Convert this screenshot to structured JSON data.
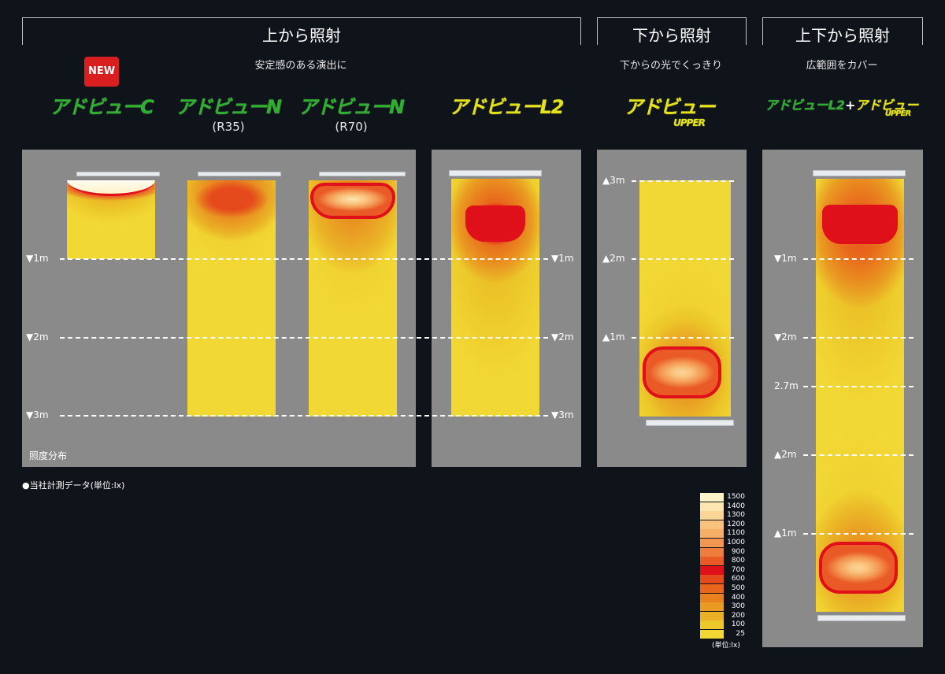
{
  "sections": [
    {
      "title": "上から照射",
      "subtitle": "安定感のある演出に"
    },
    {
      "title": "下から照射",
      "subtitle": "下からの光でくっきり"
    },
    {
      "title": "上下から照射",
      "subtitle": "広範囲をカバー"
    }
  ],
  "new_badge": "NEW",
  "products": [
    {
      "name": "アドビューC",
      "variant": ""
    },
    {
      "name": "アドビューN",
      "variant": "(R35)"
    },
    {
      "name": "アドビューN",
      "variant": "(R70)"
    },
    {
      "name": "アドビューL2",
      "variant": ""
    },
    {
      "name": "アドビュー",
      "variant": "UPPER"
    },
    {
      "name": "アドビューL2",
      "plus": "+",
      "name2": "アドビュー",
      "variant": "UPPER"
    }
  ],
  "distance_labels": {
    "down": [
      "▼1m",
      "▼2m",
      "▼3m"
    ],
    "up": [
      "▲3m",
      "▲2m",
      "▲1m"
    ],
    "combined": [
      "▼1m",
      "▼2m",
      "2.7m",
      "▲2m",
      "▲1m"
    ]
  },
  "panel_caption": "照度分布",
  "measurement_note": "●当社計測データ(単位:lx)",
  "legend": {
    "levels": [
      {
        "value": "1500",
        "color": "#fff4c8"
      },
      {
        "value": "1400",
        "color": "#fde6b0"
      },
      {
        "value": "1300",
        "color": "#fbd596"
      },
      {
        "value": "1200",
        "color": "#f9c27c"
      },
      {
        "value": "1100",
        "color": "#f7ae66"
      },
      {
        "value": "1000",
        "color": "#f39652"
      },
      {
        "value": "900",
        "color": "#ef7e3e"
      },
      {
        "value": "800",
        "color": "#ea5a26"
      },
      {
        "value": "700",
        "color": "#e0101a"
      },
      {
        "value": "600",
        "color": "#e54a1c"
      },
      {
        "value": "500",
        "color": "#e8651c"
      },
      {
        "value": "400",
        "color": "#e9801e"
      },
      {
        "value": "300",
        "color": "#e99a22"
      },
      {
        "value": "200",
        "color": "#eab126"
      },
      {
        "value": "100",
        "color": "#ecc82a"
      },
      {
        "value": "25",
        "color": "#f2d835"
      }
    ],
    "unit_label": "(単位:lx)"
  }
}
